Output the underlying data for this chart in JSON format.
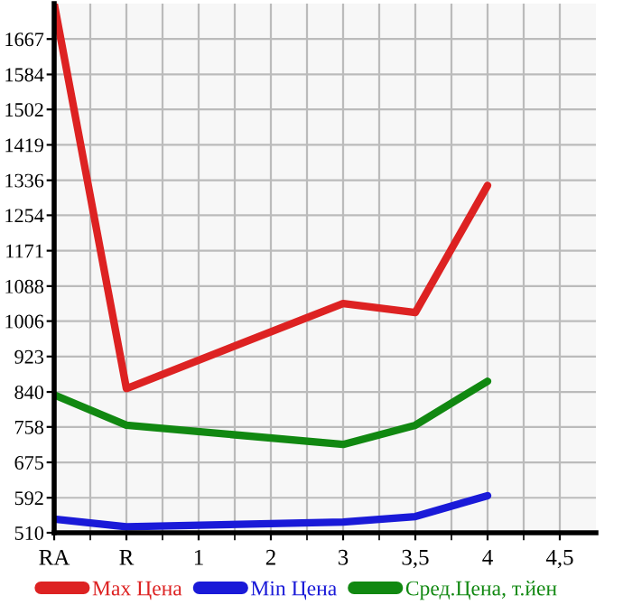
{
  "chart_data": {
    "type": "line",
    "categories": [
      "RA",
      "R",
      "1",
      "2",
      "3",
      "3,5",
      "4",
      "4,5"
    ],
    "series": [
      {
        "name": "Max Цена",
        "color": "#dd2222",
        "values": [
          1750,
          848,
          null,
          null,
          1047,
          1026,
          1324,
          null
        ]
      },
      {
        "name": "Min Цена",
        "color": "#1a1ad8",
        "values": [
          542,
          524,
          null,
          null,
          535,
          548,
          597,
          null
        ]
      },
      {
        "name": "Сред.Цена, т.йен",
        "color": "#118811",
        "values": [
          833,
          762,
          null,
          null,
          717,
          762,
          865,
          null
        ]
      }
    ],
    "ylim": [
      510,
      1750
    ],
    "yticks": [
      510,
      592,
      675,
      758,
      840,
      923,
      1006,
      1088,
      1171,
      1254,
      1336,
      1419,
      1502,
      1584,
      1667
    ],
    "grid": true,
    "legend": "bottom",
    "marker": "none",
    "line_style": "solid"
  }
}
